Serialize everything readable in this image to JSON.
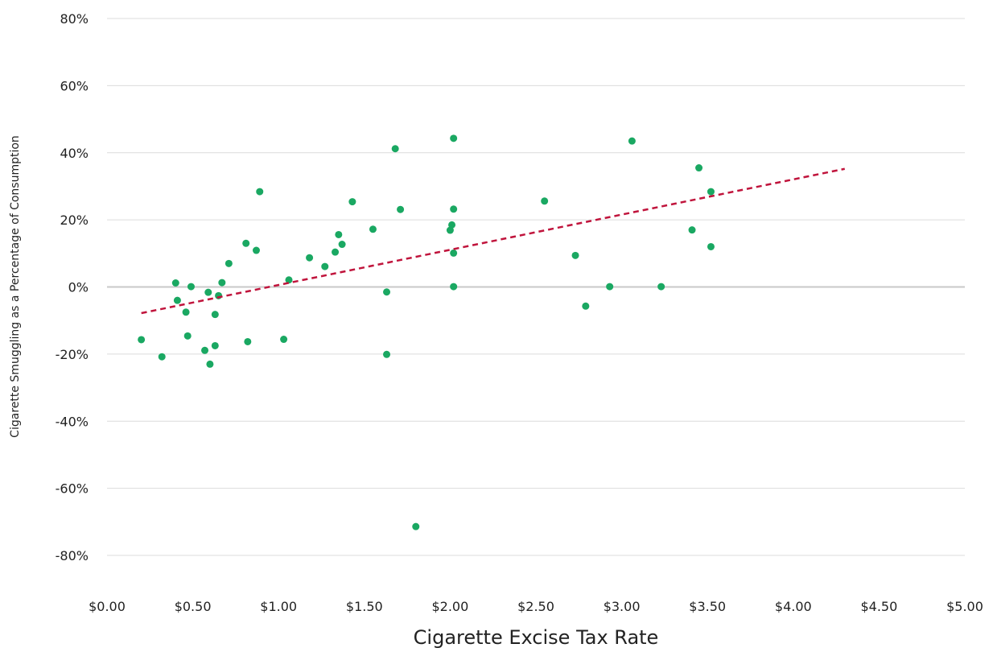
{
  "chart_data": {
    "type": "scatter",
    "title": "",
    "xlabel": "Cigarette Excise Tax Rate",
    "ylabel": "Cigarette Smuggling as a Percentage of Consumption",
    "xlim": [
      0,
      5
    ],
    "ylim": [
      -80,
      80
    ],
    "x_ticks": [
      "$0.00",
      "$0.50",
      "$1.00",
      "$1.50",
      "$2.00",
      "$2.50",
      "$3.00",
      "$3.50",
      "$4.00",
      "$4.50",
      "$5.00"
    ],
    "x_tick_values": [
      0,
      0.5,
      1,
      1.5,
      2,
      2.5,
      3,
      3.5,
      4,
      4.5,
      5
    ],
    "y_ticks": [
      "80%",
      "60%",
      "40%",
      "20%",
      "0%",
      "-20%",
      "-40%",
      "-60%",
      "-80%"
    ],
    "y_tick_values": [
      80,
      60,
      40,
      20,
      0,
      -20,
      -40,
      -60,
      -80
    ],
    "grid": true,
    "legend": "none",
    "series": [
      {
        "marker_color": "#1aa862",
        "points": [
          [
            0.2,
            -15.7
          ],
          [
            0.32,
            -20.8
          ],
          [
            0.4,
            1.2
          ],
          [
            0.41,
            -4.0
          ],
          [
            0.46,
            -7.5
          ],
          [
            0.47,
            -14.6
          ],
          [
            0.49,
            0.1
          ],
          [
            0.57,
            -18.9
          ],
          [
            0.59,
            -1.6
          ],
          [
            0.6,
            -23.0
          ],
          [
            0.63,
            -8.2
          ],
          [
            0.63,
            -17.5
          ],
          [
            0.65,
            -2.6
          ],
          [
            0.67,
            1.3
          ],
          [
            0.71,
            7.0
          ],
          [
            0.81,
            13.0
          ],
          [
            0.82,
            -16.3
          ],
          [
            0.87,
            10.9
          ],
          [
            0.89,
            28.4
          ],
          [
            1.03,
            -15.6
          ],
          [
            1.06,
            2.1
          ],
          [
            1.18,
            8.7
          ],
          [
            1.27,
            6.1
          ],
          [
            1.33,
            10.4
          ],
          [
            1.35,
            15.6
          ],
          [
            1.37,
            12.7
          ],
          [
            1.43,
            25.4
          ],
          [
            1.55,
            17.2
          ],
          [
            1.63,
            -1.5
          ],
          [
            1.63,
            -20.1
          ],
          [
            1.68,
            41.2
          ],
          [
            1.71,
            23.1
          ],
          [
            1.8,
            -71.4
          ],
          [
            2.0,
            16.9
          ],
          [
            2.01,
            18.5
          ],
          [
            2.02,
            23.2
          ],
          [
            2.02,
            44.3
          ],
          [
            2.02,
            10.1
          ],
          [
            2.02,
            0.1
          ],
          [
            2.55,
            25.6
          ],
          [
            2.73,
            9.4
          ],
          [
            2.79,
            -5.7
          ],
          [
            2.93,
            0.1
          ],
          [
            3.06,
            43.5
          ],
          [
            3.23,
            0.1
          ],
          [
            3.41,
            17.0
          ],
          [
            3.45,
            35.5
          ],
          [
            3.52,
            28.4
          ],
          [
            3.52,
            12.0
          ]
        ]
      }
    ],
    "trendline": {
      "style": "dashed",
      "color": "#c0143c",
      "x": [
        0.2,
        4.3
      ],
      "y": [
        -7.8,
        35.2
      ]
    },
    "zero_line_color": "#c8c8c8",
    "grid_color": "#dcdcdc"
  }
}
